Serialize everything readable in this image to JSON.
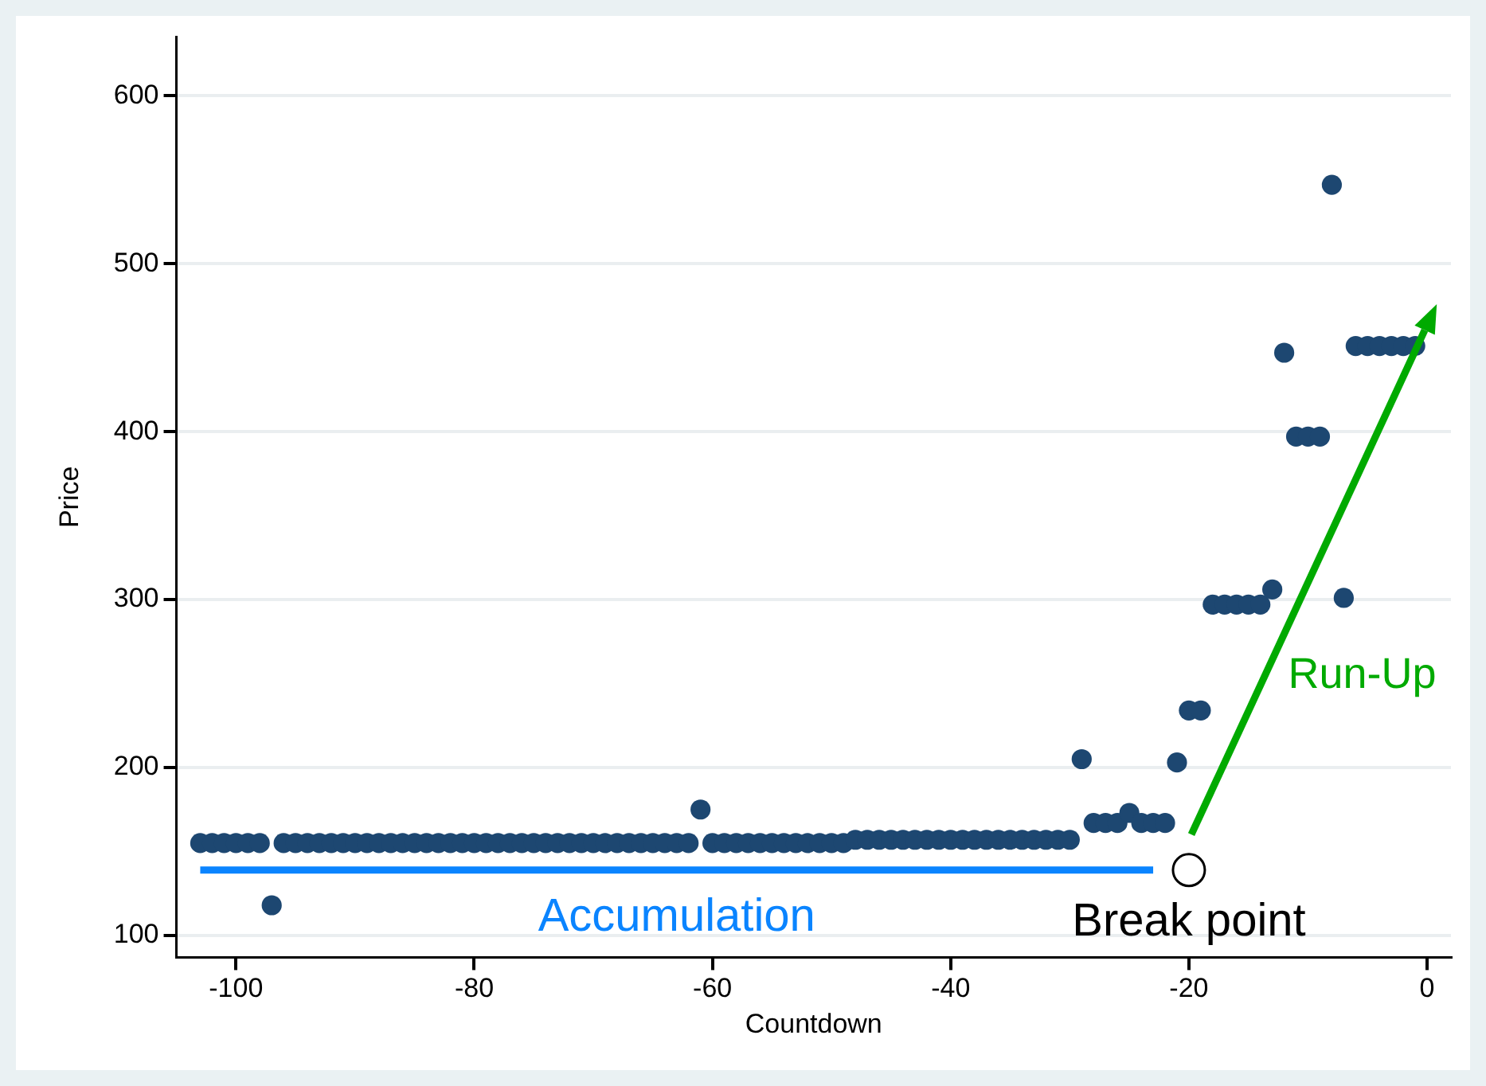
{
  "chart_data": {
    "type": "scatter",
    "xlabel": "Countdown",
    "ylabel": "Price",
    "xlim": [
      -105,
      2
    ],
    "xticks": [
      -100,
      -80,
      -60,
      -40,
      -20,
      0
    ],
    "ylim": [
      87,
      635
    ],
    "yticks": [
      100,
      200,
      300,
      400,
      500,
      600
    ],
    "grid": "y",
    "legend": false,
    "marker": "circle",
    "series": [
      {
        "type": "scatter",
        "color": "#1d4771",
        "x": [
          -103,
          -102,
          -101,
          -100,
          -99,
          -98,
          -97,
          -96,
          -95,
          -94,
          -93,
          -92,
          -91,
          -90,
          -89,
          -88,
          -87,
          -86,
          -85,
          -84,
          -83,
          -82,
          -81,
          -80,
          -79,
          -78,
          -77,
          -76,
          -75,
          -74,
          -73,
          -72,
          -71,
          -70,
          -69,
          -68,
          -67,
          -66,
          -65,
          -64,
          -63,
          -62,
          -61,
          -60,
          -59,
          -58,
          -57,
          -56,
          -55,
          -54,
          -53,
          -52,
          -51,
          -50,
          -49,
          -48,
          -47,
          -46,
          -45,
          -44,
          -43,
          -42,
          -41,
          -40,
          -39,
          -38,
          -37,
          -36,
          -35,
          -34,
          -33,
          -32,
          -31,
          -30,
          -29,
          -28,
          -27,
          -26,
          -25,
          -24,
          -23,
          -22,
          -21,
          -20,
          -19,
          -18,
          -17,
          -16,
          -15,
          -14,
          -13,
          -12,
          -11,
          -10,
          -9,
          -8,
          -7,
          -6,
          -5,
          -4,
          -3,
          -2,
          -1
        ],
        "values": [
          155,
          155,
          155,
          155,
          155,
          155,
          118,
          155,
          155,
          155,
          155,
          155,
          155,
          155,
          155,
          155,
          155,
          155,
          155,
          155,
          155,
          155,
          155,
          155,
          155,
          155,
          155,
          155,
          155,
          155,
          155,
          155,
          155,
          155,
          155,
          155,
          155,
          155,
          155,
          155,
          155,
          155,
          175,
          155,
          155,
          155,
          155,
          155,
          155,
          155,
          155,
          155,
          155,
          155,
          155,
          157,
          157,
          157,
          157,
          157,
          157,
          157,
          157,
          157,
          157,
          157,
          157,
          157,
          157,
          157,
          157,
          157,
          157,
          157,
          205,
          167,
          167,
          167,
          173,
          167,
          167,
          167,
          203,
          234,
          234,
          297,
          297,
          297,
          297,
          297,
          306,
          447,
          397,
          397,
          397,
          547,
          301,
          451,
          451,
          451,
          451,
          451,
          451
        ]
      },
      {
        "type": "line",
        "name": "Accumulation",
        "color": "#0a84ff",
        "marker": "none",
        "x": [
          -103,
          -23
        ],
        "values": [
          139,
          139
        ]
      }
    ],
    "annotations": [
      {
        "text": "Break point",
        "x": -20,
        "y": 139
      },
      "Run-Up"
    ]
  }
}
